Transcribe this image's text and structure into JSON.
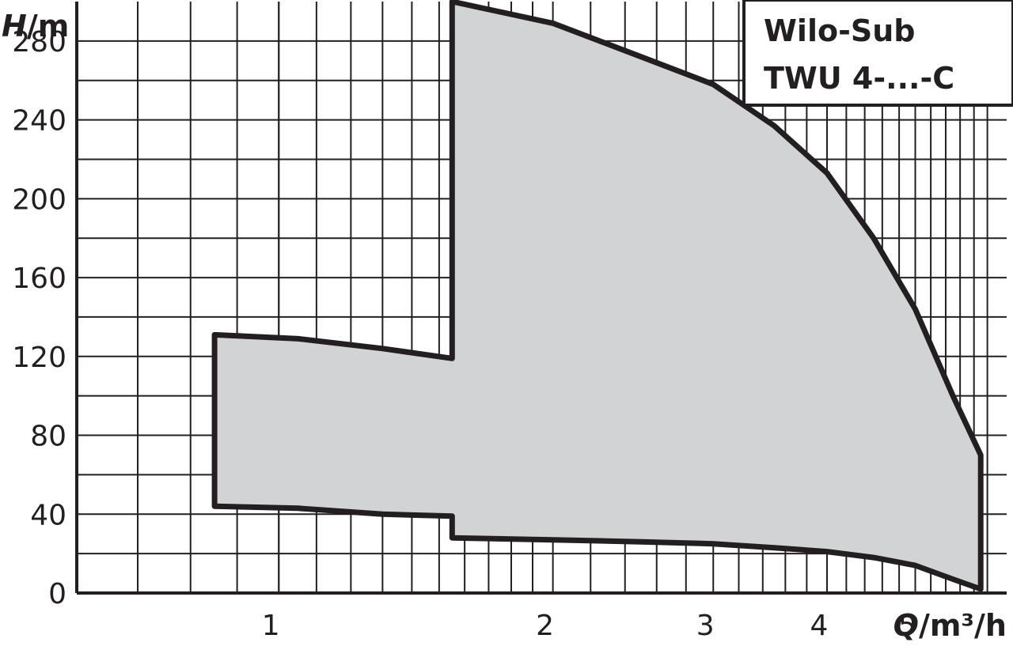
{
  "chart_data": {
    "type": "area",
    "title_lines": [
      "Wilo-Sub",
      "TWU 4-...-C"
    ],
    "x_axis": {
      "label_var": "Q",
      "label_unit": "/m³/h",
      "scale": "log",
      "range": [
        0.6,
        6.3
      ],
      "ticks": [
        1,
        2,
        3,
        4,
        5
      ]
    },
    "y_axis": {
      "label_var": "H",
      "label_unit": "/m",
      "range": [
        0,
        300
      ],
      "ticks": [
        0,
        40,
        80,
        120,
        160,
        200,
        240,
        280
      ]
    },
    "grid": true,
    "fill_color": "#d2d3d5",
    "outline_color": "#231f20",
    "series": [
      {
        "points": [
          [
            0.85,
            131
          ],
          [
            1.05,
            129
          ],
          [
            1.3,
            124
          ],
          [
            1.55,
            119
          ],
          [
            1.55,
            300
          ],
          [
            2.0,
            289
          ],
          [
            2.5,
            272
          ],
          [
            3.0,
            258
          ],
          [
            3.5,
            237
          ],
          [
            4.0,
            213
          ],
          [
            4.5,
            180
          ],
          [
            5.0,
            144
          ],
          [
            5.5,
            100
          ],
          [
            5.9,
            70
          ],
          [
            5.9,
            2
          ],
          [
            5.5,
            7
          ],
          [
            5.0,
            14
          ],
          [
            4.5,
            18
          ],
          [
            4.0,
            21
          ],
          [
            3.5,
            23
          ],
          [
            3.0,
            25
          ],
          [
            2.5,
            26
          ],
          [
            2.0,
            27
          ],
          [
            1.55,
            28
          ],
          [
            1.55,
            39
          ],
          [
            1.3,
            40
          ],
          [
            1.05,
            43
          ],
          [
            0.85,
            44
          ]
        ]
      }
    ]
  }
}
